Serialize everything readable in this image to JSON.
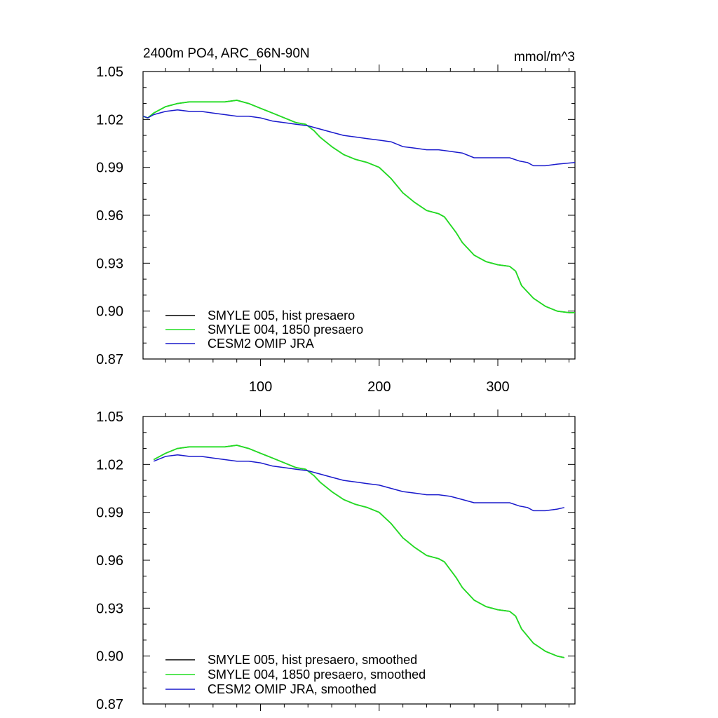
{
  "chart_data": [
    {
      "type": "line",
      "title": "2400m PO4, ARC_66N-90N",
      "units": "mmol/m^3",
      "xlabel": "",
      "ylabel": "",
      "xlim": [
        1,
        365
      ],
      "ylim": [
        0.87,
        1.05
      ],
      "xticks": [
        100,
        200,
        300
      ],
      "xtick_labels": [
        "100",
        "200",
        "300"
      ],
      "yticks": [
        0.87,
        0.9,
        0.93,
        0.96,
        0.99,
        1.02,
        1.05
      ],
      "ytick_labels": [
        "0.87",
        "0.90",
        "0.93",
        "0.96",
        "0.99",
        "1.02",
        "1.05"
      ],
      "grid": false,
      "legend_position": "bottom-left",
      "series": [
        {
          "name": "SMYLE 005, hist presaero",
          "color": "#000000",
          "points": [
            [
              1,
              1.022
            ],
            [
              5,
              1.021
            ],
            [
              10,
              1.024
            ],
            [
              20,
              1.028
            ],
            [
              30,
              1.03
            ],
            [
              40,
              1.031
            ],
            [
              50,
              1.031
            ],
            [
              60,
              1.031
            ],
            [
              70,
              1.031
            ],
            [
              80,
              1.032
            ],
            [
              90,
              1.03
            ],
            [
              100,
              1.027
            ],
            [
              110,
              1.024
            ],
            [
              120,
              1.021
            ],
            [
              130,
              1.018
            ],
            [
              138,
              1.017
            ],
            [
              145,
              1.013
            ],
            [
              150,
              1.009
            ],
            [
              160,
              1.003
            ],
            [
              170,
              0.998
            ],
            [
              180,
              0.995
            ],
            [
              190,
              0.993
            ],
            [
              200,
              0.99
            ],
            [
              210,
              0.983
            ],
            [
              220,
              0.974
            ],
            [
              230,
              0.968
            ],
            [
              240,
              0.963
            ],
            [
              250,
              0.961
            ],
            [
              255,
              0.959
            ],
            [
              260,
              0.954
            ],
            [
              265,
              0.949
            ],
            [
              270,
              0.943
            ],
            [
              280,
              0.935
            ],
            [
              290,
              0.931
            ],
            [
              300,
              0.929
            ],
            [
              310,
              0.928
            ],
            [
              315,
              0.925
            ],
            [
              320,
              0.916
            ],
            [
              330,
              0.908
            ],
            [
              340,
              0.903
            ],
            [
              350,
              0.9
            ],
            [
              360,
              0.899
            ],
            [
              365,
              0.899
            ]
          ]
        },
        {
          "name": "SMYLE 004, 1850 presaero",
          "color": "#22dd22",
          "points": [
            [
              1,
              1.022
            ],
            [
              5,
              1.021
            ],
            [
              10,
              1.024
            ],
            [
              20,
              1.028
            ],
            [
              30,
              1.03
            ],
            [
              40,
              1.031
            ],
            [
              50,
              1.031
            ],
            [
              60,
              1.031
            ],
            [
              70,
              1.031
            ],
            [
              80,
              1.032
            ],
            [
              90,
              1.03
            ],
            [
              100,
              1.027
            ],
            [
              110,
              1.024
            ],
            [
              120,
              1.021
            ],
            [
              130,
              1.018
            ],
            [
              138,
              1.017
            ],
            [
              145,
              1.013
            ],
            [
              150,
              1.009
            ],
            [
              160,
              1.003
            ],
            [
              170,
              0.998
            ],
            [
              180,
              0.995
            ],
            [
              190,
              0.993
            ],
            [
              200,
              0.99
            ],
            [
              210,
              0.983
            ],
            [
              220,
              0.974
            ],
            [
              230,
              0.968
            ],
            [
              240,
              0.963
            ],
            [
              250,
              0.961
            ],
            [
              255,
              0.959
            ],
            [
              260,
              0.954
            ],
            [
              265,
              0.949
            ],
            [
              270,
              0.943
            ],
            [
              280,
              0.935
            ],
            [
              290,
              0.931
            ],
            [
              300,
              0.929
            ],
            [
              310,
              0.928
            ],
            [
              315,
              0.925
            ],
            [
              320,
              0.916
            ],
            [
              330,
              0.908
            ],
            [
              340,
              0.903
            ],
            [
              350,
              0.9
            ],
            [
              360,
              0.899
            ],
            [
              365,
              0.899
            ]
          ]
        },
        {
          "name": "CESM2 OMIP JRA",
          "color": "#1a1acc",
          "points": [
            [
              1,
              1.022
            ],
            [
              5,
              1.021
            ],
            [
              10,
              1.023
            ],
            [
              20,
              1.025
            ],
            [
              30,
              1.026
            ],
            [
              40,
              1.025
            ],
            [
              50,
              1.025
            ],
            [
              60,
              1.024
            ],
            [
              70,
              1.023
            ],
            [
              80,
              1.022
            ],
            [
              90,
              1.022
            ],
            [
              100,
              1.021
            ],
            [
              110,
              1.019
            ],
            [
              120,
              1.018
            ],
            [
              130,
              1.017
            ],
            [
              140,
              1.016
            ],
            [
              150,
              1.014
            ],
            [
              160,
              1.012
            ],
            [
              170,
              1.01
            ],
            [
              180,
              1.009
            ],
            [
              190,
              1.008
            ],
            [
              200,
              1.007
            ],
            [
              210,
              1.006
            ],
            [
              220,
              1.003
            ],
            [
              230,
              1.002
            ],
            [
              240,
              1.001
            ],
            [
              250,
              1.001
            ],
            [
              260,
              1.0
            ],
            [
              270,
              0.999
            ],
            [
              280,
              0.996
            ],
            [
              290,
              0.996
            ],
            [
              300,
              0.996
            ],
            [
              310,
              0.996
            ],
            [
              318,
              0.994
            ],
            [
              325,
              0.993
            ],
            [
              330,
              0.991
            ],
            [
              340,
              0.991
            ],
            [
              350,
              0.992
            ],
            [
              365,
              0.993
            ]
          ]
        }
      ]
    },
    {
      "type": "line",
      "title": "",
      "units": "",
      "xlabel": "",
      "ylabel": "",
      "xlim": [
        1,
        365
      ],
      "ylim": [
        0.87,
        1.05
      ],
      "xticks": [
        100,
        200,
        300
      ],
      "xtick_labels": [],
      "yticks": [
        0.87,
        0.9,
        0.93,
        0.96,
        0.99,
        1.02,
        1.05
      ],
      "ytick_labels": [
        "0.87",
        "0.90",
        "0.93",
        "0.96",
        "0.99",
        "1.02",
        "1.05"
      ],
      "grid": false,
      "legend_position": "bottom-left",
      "series": [
        {
          "name": "SMYLE 005, hist presaero, smoothed",
          "color": "#000000",
          "points": [
            [
              10,
              1.023
            ],
            [
              20,
              1.027
            ],
            [
              30,
              1.03
            ],
            [
              40,
              1.031
            ],
            [
              50,
              1.031
            ],
            [
              60,
              1.031
            ],
            [
              70,
              1.031
            ],
            [
              80,
              1.032
            ],
            [
              90,
              1.03
            ],
            [
              100,
              1.027
            ],
            [
              110,
              1.024
            ],
            [
              120,
              1.021
            ],
            [
              130,
              1.018
            ],
            [
              138,
              1.017
            ],
            [
              145,
              1.013
            ],
            [
              150,
              1.009
            ],
            [
              160,
              1.003
            ],
            [
              170,
              0.998
            ],
            [
              180,
              0.995
            ],
            [
              190,
              0.993
            ],
            [
              200,
              0.99
            ],
            [
              210,
              0.983
            ],
            [
              220,
              0.974
            ],
            [
              230,
              0.968
            ],
            [
              240,
              0.963
            ],
            [
              250,
              0.961
            ],
            [
              255,
              0.959
            ],
            [
              260,
              0.954
            ],
            [
              265,
              0.949
            ],
            [
              270,
              0.943
            ],
            [
              280,
              0.935
            ],
            [
              290,
              0.931
            ],
            [
              300,
              0.929
            ],
            [
              310,
              0.928
            ],
            [
              315,
              0.925
            ],
            [
              320,
              0.917
            ],
            [
              330,
              0.908
            ],
            [
              340,
              0.903
            ],
            [
              350,
              0.9
            ],
            [
              356,
              0.899
            ]
          ]
        },
        {
          "name": "SMYLE 004, 1850 presaero, smoothed",
          "color": "#22dd22",
          "points": [
            [
              10,
              1.023
            ],
            [
              20,
              1.027
            ],
            [
              30,
              1.03
            ],
            [
              40,
              1.031
            ],
            [
              50,
              1.031
            ],
            [
              60,
              1.031
            ],
            [
              70,
              1.031
            ],
            [
              80,
              1.032
            ],
            [
              90,
              1.03
            ],
            [
              100,
              1.027
            ],
            [
              110,
              1.024
            ],
            [
              120,
              1.021
            ],
            [
              130,
              1.018
            ],
            [
              138,
              1.017
            ],
            [
              145,
              1.013
            ],
            [
              150,
              1.009
            ],
            [
              160,
              1.003
            ],
            [
              170,
              0.998
            ],
            [
              180,
              0.995
            ],
            [
              190,
              0.993
            ],
            [
              200,
              0.99
            ],
            [
              210,
              0.983
            ],
            [
              220,
              0.974
            ],
            [
              230,
              0.968
            ],
            [
              240,
              0.963
            ],
            [
              250,
              0.961
            ],
            [
              255,
              0.959
            ],
            [
              260,
              0.954
            ],
            [
              265,
              0.949
            ],
            [
              270,
              0.943
            ],
            [
              280,
              0.935
            ],
            [
              290,
              0.931
            ],
            [
              300,
              0.929
            ],
            [
              310,
              0.928
            ],
            [
              315,
              0.925
            ],
            [
              320,
              0.917
            ],
            [
              330,
              0.908
            ],
            [
              340,
              0.903
            ],
            [
              350,
              0.9
            ],
            [
              356,
              0.899
            ]
          ]
        },
        {
          "name": "CESM2 OMIP JRA, smoothed",
          "color": "#1a1acc",
          "points": [
            [
              10,
              1.022
            ],
            [
              20,
              1.025
            ],
            [
              30,
              1.026
            ],
            [
              40,
              1.025
            ],
            [
              50,
              1.025
            ],
            [
              60,
              1.024
            ],
            [
              70,
              1.023
            ],
            [
              80,
              1.022
            ],
            [
              90,
              1.022
            ],
            [
              100,
              1.021
            ],
            [
              110,
              1.019
            ],
            [
              120,
              1.018
            ],
            [
              130,
              1.017
            ],
            [
              140,
              1.016
            ],
            [
              150,
              1.014
            ],
            [
              160,
              1.012
            ],
            [
              170,
              1.01
            ],
            [
              180,
              1.009
            ],
            [
              190,
              1.008
            ],
            [
              200,
              1.007
            ],
            [
              210,
              1.005
            ],
            [
              220,
              1.003
            ],
            [
              230,
              1.002
            ],
            [
              240,
              1.001
            ],
            [
              250,
              1.001
            ],
            [
              260,
              1.0
            ],
            [
              270,
              0.998
            ],
            [
              280,
              0.996
            ],
            [
              290,
              0.996
            ],
            [
              300,
              0.996
            ],
            [
              310,
              0.996
            ],
            [
              318,
              0.994
            ],
            [
              325,
              0.993
            ],
            [
              330,
              0.991
            ],
            [
              340,
              0.991
            ],
            [
              350,
              0.992
            ],
            [
              356,
              0.993
            ]
          ]
        }
      ]
    }
  ]
}
